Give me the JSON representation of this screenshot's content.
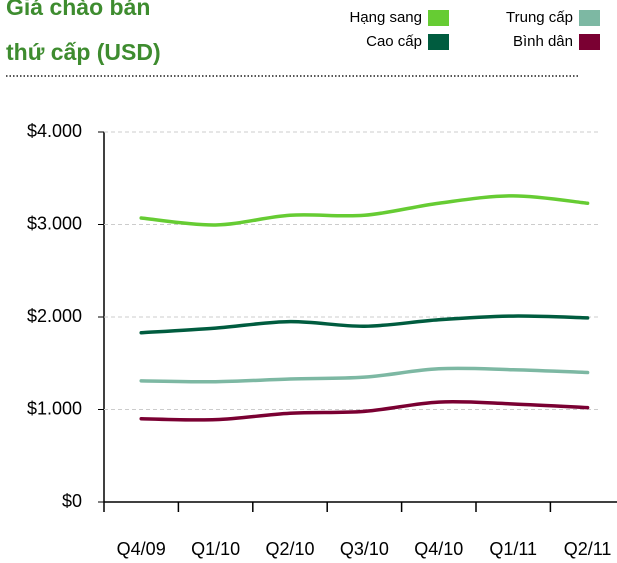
{
  "chart_data": {
    "type": "line",
    "title": [
      "Giá chào bán",
      "thứ cấp (USD)"
    ],
    "categories": [
      "Q4/09",
      "Q1/10",
      "Q2/10",
      "Q3/10",
      "Q4/10",
      "Q1/11",
      "Q2/11"
    ],
    "series": [
      {
        "name": "Hạng sang",
        "color": "#66cc33",
        "values": [
          3070,
          2995,
          3100,
          3100,
          3230,
          3310,
          3230
        ]
      },
      {
        "name": "Trung cấp",
        "color": "#7db8a3",
        "values": [
          1310,
          1300,
          1330,
          1350,
          1440,
          1430,
          1400
        ]
      },
      {
        "name": "Cao cấp",
        "color": "#005c3f",
        "values": [
          1830,
          1880,
          1950,
          1900,
          1970,
          2010,
          1990
        ]
      },
      {
        "name": "Bình dân",
        "color": "#7a0032",
        "values": [
          900,
          890,
          960,
          980,
          1080,
          1060,
          1020
        ]
      }
    ],
    "ylim": [
      0,
      4000
    ],
    "yticks": [
      {
        "value": 0,
        "label": "$0"
      },
      {
        "value": 1000,
        "label": "$1.000"
      },
      {
        "value": 2000,
        "label": "$2.000"
      },
      {
        "value": 3000,
        "label": "$3.000"
      },
      {
        "value": 4000,
        "label": "$4.000"
      }
    ],
    "grid": true
  }
}
